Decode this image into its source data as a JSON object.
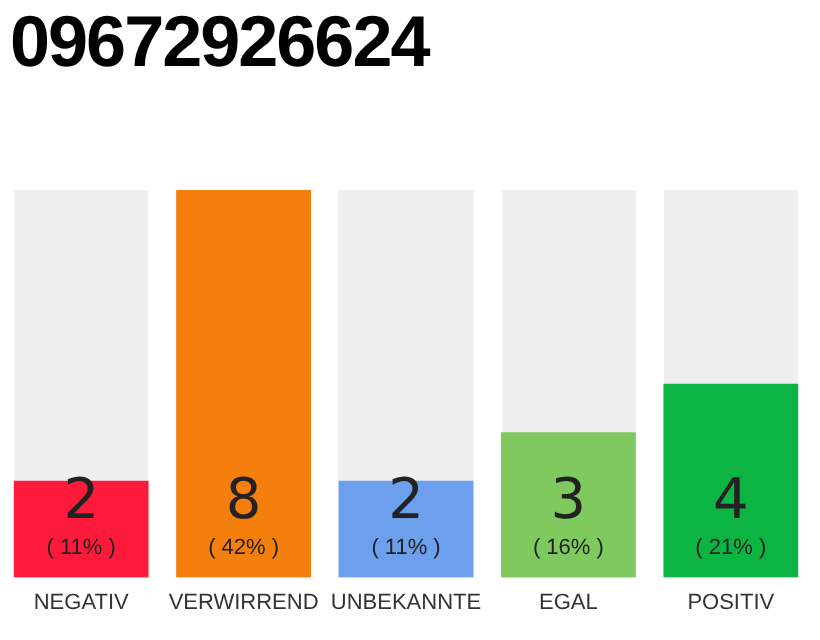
{
  "chart_data": {
    "type": "bar",
    "title": "09672926624",
    "categories": [
      "NEGATIV",
      "VERWIRREND",
      "UNBEKANNTE",
      "EGAL",
      "POSITIV"
    ],
    "values": [
      2,
      8,
      2,
      3,
      4
    ],
    "colors": [
      "#fe1a3b",
      "#f47f0c",
      "#6ca0ec",
      "#7fc95f",
      "#0cb444"
    ],
    "value_labels": [
      "2\n( 11% )",
      "8\n( 42% )",
      "2\n( 11% )",
      "3\n( 16% )",
      "4\n( 21% )"
    ],
    "grid": false,
    "legend": false
  }
}
